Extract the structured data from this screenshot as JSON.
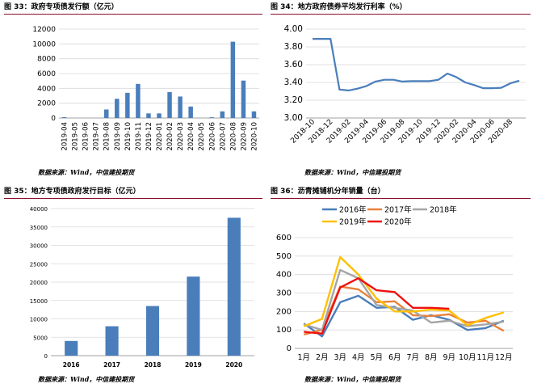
{
  "panels": [
    {
      "title": "图 33：政府专项债发行额（亿元）",
      "source": "数据来源：Wind，中信建投期货",
      "chart_data": {
        "type": "bar",
        "categories": [
          "2019-04",
          "2019-05",
          "2019-06",
          "2019-07",
          "2019-08",
          "2019-09",
          "2019-10",
          "2019-11",
          "2019-12",
          "2020-01",
          "2020-02",
          "2020-03",
          "2020-04",
          "2020-05",
          "2020-06",
          "2020-07",
          "2020-08",
          "2020-09",
          "2020-10"
        ],
        "values": [
          120,
          0,
          0,
          0,
          1150,
          2600,
          3400,
          4600,
          620,
          620,
          3500,
          2900,
          1550,
          0,
          100,
          900,
          10300,
          5050,
          900
        ],
        "ylim": [
          0,
          12000
        ],
        "yticks": [
          "0",
          "2000",
          "4000",
          "6000",
          "8000",
          "10000",
          "12000"
        ],
        "bar_color": "#4a7ebb",
        "grid": true
      }
    },
    {
      "title": "图 34：地方政府债券平均发行利率（%）",
      "source": "数据来源：Wind，中信建投期货",
      "chart_data": {
        "type": "line",
        "x": [
          "2018-10",
          "2018-11",
          "2018-12",
          "2019-01",
          "2019-02",
          "2019-03",
          "2019-04",
          "2019-05",
          "2019-06",
          "2019-07",
          "2019-08",
          "2019-09",
          "2019-10",
          "2019-11",
          "2019-12",
          "2020-01",
          "2020-02",
          "2020-03",
          "2020-04",
          "2020-05",
          "2020-06",
          "2020-07",
          "2020-08",
          "2020-09"
        ],
        "xticks": [
          "2018-10",
          "2018-12",
          "2019-02",
          "2019-04",
          "2019-06",
          "2019-08",
          "2019-10",
          "2019-12",
          "2020-02",
          "2020-04",
          "2020-06",
          "2020-08"
        ],
        "values": [
          3.89,
          3.89,
          3.89,
          3.32,
          3.31,
          3.33,
          3.36,
          3.41,
          3.43,
          3.43,
          3.41,
          3.415,
          3.415,
          3.415,
          3.43,
          3.5,
          3.46,
          3.4,
          3.37,
          3.335,
          3.335,
          3.34,
          3.39,
          3.42
        ],
        "ylim": [
          3.0,
          4.0
        ],
        "yticks": [
          "3.00",
          "3.20",
          "3.40",
          "3.60",
          "3.80",
          "4.00"
        ],
        "line_color": "#4a7ebb",
        "grid": true
      }
    },
    {
      "title": "图 35：地方专项债政府发行目标（亿元）",
      "source": "数据来源：Wind，中信建投期货",
      "chart_data": {
        "type": "bar",
        "categories": [
          "2016",
          "2017",
          "2018",
          "2019",
          "2020"
        ],
        "values": [
          4000,
          8000,
          13500,
          21500,
          37500
        ],
        "ylim": [
          0,
          40000
        ],
        "yticks": [
          "0",
          "5000",
          "10000",
          "15000",
          "20000",
          "25000",
          "30000",
          "35000",
          "40000"
        ],
        "bar_color": "#4a7ebb",
        "grid": true
      }
    },
    {
      "title": "图 36：沥青摊铺机分年销量（台）",
      "source": "数据来源：Wind，中信建投期货",
      "chart_data": {
        "type": "line",
        "categories": [
          "1月",
          "2月",
          "3月",
          "4月",
          "5月",
          "6月",
          "7月",
          "8月",
          "9月",
          "10月",
          "11月",
          "12月"
        ],
        "ylim": [
          0,
          600
        ],
        "yticks": [
          "0",
          "100",
          "200",
          "300",
          "400",
          "500",
          "600"
        ],
        "legend_position": "top",
        "grid": true,
        "series": [
          {
            "name": "2016年",
            "color": "#4a7ebb",
            "values": [
              135,
              65,
              250,
              285,
              220,
              225,
              155,
              180,
              155,
              100,
              110,
              150
            ]
          },
          {
            "name": "2017年",
            "color": "#e9813a",
            "values": [
              75,
              100,
              335,
              320,
              250,
              255,
              180,
              175,
              185,
              140,
              150,
              95
            ]
          },
          {
            "name": "2018年",
            "color": "#a5a5a5",
            "values": [
              130,
              100,
              425,
              380,
              235,
              220,
              205,
              140,
              150,
              120,
              130,
              145
            ]
          },
          {
            "name": "2019年",
            "color": "#ffc000",
            "values": [
              120,
              160,
              495,
              400,
              270,
              200,
              200,
              210,
              205,
              125,
              165,
              195
            ]
          },
          {
            "name": "2020年",
            "color": "#ee1111",
            "values": [
              90,
              80,
              330,
              380,
              315,
              305,
              220,
              220,
              215,
              null,
              null,
              null
            ]
          }
        ]
      }
    }
  ]
}
